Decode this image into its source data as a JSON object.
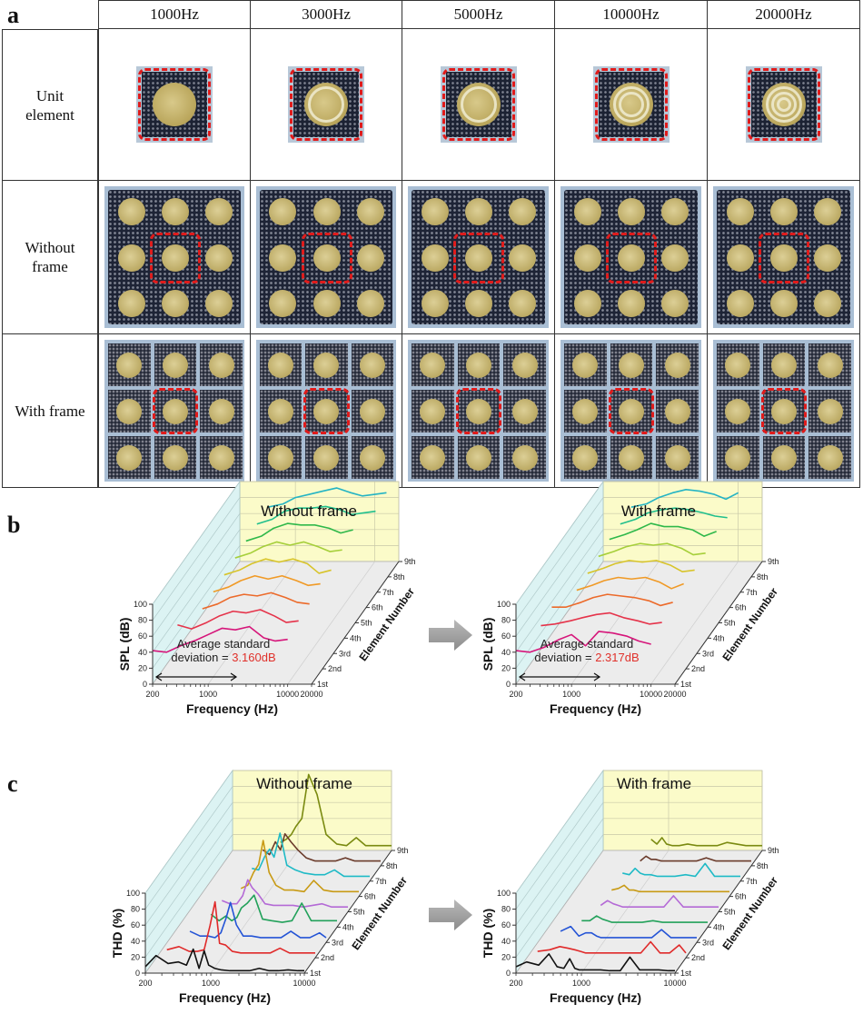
{
  "panels": {
    "a": "a",
    "b": "b",
    "c": "c"
  },
  "table": {
    "columns": [
      "1000Hz",
      "3000Hz",
      "5000Hz",
      "10000Hz",
      "20000Hz"
    ],
    "rows": [
      {
        "label_line1": "Unit",
        "label_line2": "element"
      },
      {
        "label_line1": "Without",
        "label_line2": "frame"
      },
      {
        "label_line1": "With frame",
        "label_line2": ""
      }
    ],
    "highlight_color": "#e01b1b"
  },
  "spl_charts": {
    "left_title": "Without frame",
    "right_title": "With frame",
    "ylabel": "SPL (dB)",
    "xlabel": "Frequency (Hz)",
    "zlabel": "Element Number",
    "yticks": [
      "0",
      "20",
      "40",
      "60",
      "80",
      "100"
    ],
    "xticks": [
      "200",
      "1000",
      "10000",
      "20000"
    ],
    "zticks": [
      "1st",
      "2nd",
      "3rd",
      "4th",
      "5th",
      "6th",
      "7th",
      "8th",
      "9th"
    ],
    "left_annotation_line1": "Average standard",
    "left_annotation_line2": "deviation = ",
    "left_annotation_value": "3.160dB",
    "right_annotation_line1": "Average standard",
    "right_annotation_line2": "deviation = ",
    "right_annotation_value": "2.317dB"
  },
  "thd_charts": {
    "left_title": "Without frame",
    "right_title": "With frame",
    "ylabel": "THD (%)",
    "xlabel": "Frequency (Hz)",
    "zlabel": "Element Number",
    "yticks": [
      "0",
      "20",
      "40",
      "60",
      "80",
      "100"
    ],
    "xticks": [
      "200",
      "1000",
      "10000"
    ],
    "zticks": [
      "1st",
      "2nd",
      "3rd",
      "4th",
      "5th",
      "6th",
      "7th",
      "8th",
      "9th"
    ]
  },
  "chart_data": [
    {
      "type": "line",
      "title": "Without frame",
      "xlabel": "Frequency (Hz)",
      "ylabel": "SPL (dB)",
      "zlabel": "Element Number",
      "xscale": "log",
      "xlim": [
        200,
        20000
      ],
      "ylim": [
        0,
        100
      ],
      "x": [
        200,
        300,
        450,
        700,
        1000,
        1500,
        2200,
        3300,
        5000,
        7000,
        10000,
        14000
      ],
      "series": [
        {
          "name": "1st",
          "color": "#d6157a",
          "values": [
            42,
            40,
            48,
            55,
            62,
            70,
            68,
            72,
            58,
            54,
            56,
            null
          ]
        },
        {
          "name": "2nd",
          "color": "#e5334a",
          "values": [
            null,
            55,
            50,
            58,
            66,
            72,
            70,
            74,
            66,
            58,
            60,
            null
          ]
        },
        {
          "name": "3rd",
          "color": "#ec6a2a",
          "values": [
            null,
            null,
            56,
            62,
            70,
            74,
            72,
            76,
            70,
            64,
            62,
            null
          ]
        },
        {
          "name": "4th",
          "color": "#f09a26",
          "values": [
            null,
            null,
            58,
            64,
            72,
            78,
            74,
            78,
            72,
            66,
            68,
            null
          ]
        },
        {
          "name": "5th",
          "color": "#d8c42a",
          "values": [
            null,
            null,
            60,
            66,
            74,
            80,
            76,
            80,
            74,
            62,
            66,
            null
          ]
        },
        {
          "name": "6th",
          "color": "#a6cf3a",
          "values": [
            null,
            null,
            62,
            68,
            76,
            82,
            78,
            82,
            76,
            70,
            72,
            null
          ]
        },
        {
          "name": "7th",
          "color": "#2fb84a",
          "values": [
            null,
            null,
            64,
            70,
            80,
            86,
            84,
            84,
            80,
            74,
            78,
            null
          ]
        },
        {
          "name": "8th",
          "color": "#1fbf8c",
          "values": [
            null,
            null,
            66,
            72,
            82,
            86,
            86,
            88,
            84,
            78,
            80,
            82
          ]
        },
        {
          "name": "9th",
          "color": "#24b4c4",
          "values": [
            null,
            null,
            68,
            72,
            80,
            84,
            88,
            92,
            86,
            82,
            84,
            86
          ]
        }
      ],
      "annotation": "Average standard deviation = 3.160dB"
    },
    {
      "type": "line",
      "title": "With frame",
      "xlabel": "Frequency (Hz)",
      "ylabel": "SPL (dB)",
      "zlabel": "Element Number",
      "xscale": "log",
      "xlim": [
        200,
        20000
      ],
      "ylim": [
        0,
        100
      ],
      "x": [
        200,
        300,
        450,
        700,
        1000,
        1500,
        2200,
        3300,
        5000,
        7000,
        10000,
        14000
      ],
      "series": [
        {
          "name": "1st",
          "color": "#d6157a",
          "values": [
            42,
            40,
            46,
            56,
            62,
            48,
            66,
            64,
            60,
            54,
            50,
            null
          ]
        },
        {
          "name": "2nd",
          "color": "#e5334a",
          "values": [
            null,
            54,
            56,
            60,
            64,
            68,
            70,
            64,
            60,
            56,
            58,
            null
          ]
        },
        {
          "name": "3rd",
          "color": "#ec6a2a",
          "values": [
            null,
            58,
            58,
            64,
            70,
            74,
            72,
            70,
            66,
            60,
            64,
            null
          ]
        },
        {
          "name": "4th",
          "color": "#f09a26",
          "values": [
            null,
            null,
            60,
            66,
            72,
            76,
            74,
            76,
            70,
            62,
            68,
            null
          ]
        },
        {
          "name": "5th",
          "color": "#d8c42a",
          "values": [
            null,
            null,
            62,
            68,
            74,
            78,
            76,
            78,
            72,
            64,
            66,
            null
          ]
        },
        {
          "name": "6th",
          "color": "#a6cf3a",
          "values": [
            null,
            null,
            64,
            70,
            76,
            80,
            78,
            80,
            74,
            66,
            68,
            null
          ]
        },
        {
          "name": "7th",
          "color": "#2fb84a",
          "values": [
            null,
            null,
            66,
            72,
            78,
            86,
            82,
            82,
            78,
            70,
            76,
            null
          ]
        },
        {
          "name": "8th",
          "color": "#1fbf8c",
          "values": [
            null,
            null,
            66,
            72,
            80,
            84,
            86,
            84,
            80,
            76,
            74,
            null
          ]
        },
        {
          "name": "9th",
          "color": "#24b4c4",
          "values": [
            null,
            null,
            68,
            72,
            80,
            86,
            90,
            88,
            84,
            78,
            86,
            null
          ]
        }
      ],
      "annotation": "Average standard deviation = 2.317dB"
    },
    {
      "type": "line",
      "title": "Without frame",
      "xlabel": "Frequency (Hz)",
      "ylabel": "THD (%)",
      "zlabel": "Element Number",
      "xscale": "log",
      "xlim": [
        200,
        10000
      ],
      "ylim": [
        0,
        100
      ],
      "x": [
        200,
        260,
        350,
        450,
        550,
        650,
        750,
        850,
        950,
        1100,
        1300,
        1600,
        2000,
        2600,
        3300,
        4200,
        5300,
        6700,
        8500,
        10000
      ],
      "series": [
        {
          "name": "1st",
          "color": "#111111",
          "values": [
            8,
            22,
            12,
            14,
            10,
            30,
            6,
            28,
            10,
            6,
            4,
            3,
            3,
            3,
            6,
            3,
            3,
            4,
            3,
            3
          ]
        },
        {
          "name": "2nd",
          "color": "#e02a2a",
          "values": [
            null,
            10,
            14,
            8,
            8,
            10,
            40,
            70,
            18,
            16,
            8,
            6,
            6,
            6,
            6,
            12,
            6,
            6,
            6,
            6
          ]
        },
        {
          "name": "3rd",
          "color": "#2454d6",
          "values": [
            null,
            null,
            14,
            8,
            8,
            6,
            12,
            30,
            50,
            22,
            8,
            8,
            6,
            6,
            6,
            14,
            6,
            6,
            12,
            6
          ]
        },
        {
          "name": "4th",
          "color": "#22a15a",
          "values": [
            null,
            null,
            null,
            16,
            8,
            14,
            8,
            12,
            24,
            30,
            40,
            10,
            8,
            6,
            8,
            30,
            8,
            8,
            8,
            8
          ]
        },
        {
          "name": "5th",
          "color": "#b46ad6",
          "values": [
            null,
            null,
            null,
            14,
            10,
            10,
            20,
            40,
            30,
            22,
            10,
            8,
            8,
            8,
            6,
            8,
            10,
            6,
            6,
            6
          ]
        },
        {
          "name": "6th",
          "color": "#c89a14",
          "values": [
            null,
            null,
            null,
            null,
            10,
            14,
            30,
            40,
            70,
            30,
            14,
            8,
            8,
            6,
            20,
            8,
            6,
            6,
            6,
            6
          ]
        },
        {
          "name": "7th",
          "color": "#1fbac6",
          "values": [
            null,
            null,
            null,
            null,
            16,
            14,
            30,
            40,
            30,
            60,
            20,
            14,
            10,
            8,
            8,
            14,
            6,
            6,
            6,
            6
          ]
        },
        {
          "name": "8th",
          "color": "#6a3a2a",
          "values": [
            null,
            null,
            null,
            null,
            20,
            14,
            30,
            20,
            40,
            30,
            20,
            10,
            6,
            6,
            6,
            10,
            6,
            6,
            6,
            6
          ]
        },
        {
          "name": "9th",
          "color": "#7a8a10",
          "values": [
            null,
            null,
            null,
            null,
            null,
            10,
            14,
            20,
            30,
            40,
            95,
            70,
            20,
            8,
            6,
            16,
            6,
            6,
            6,
            6
          ]
        }
      ]
    },
    {
      "type": "line",
      "title": "With frame",
      "xlabel": "Frequency (Hz)",
      "ylabel": "THD (%)",
      "zlabel": "Element Number",
      "xscale": "log",
      "xlim": [
        200,
        10000
      ],
      "ylim": [
        0,
        100
      ],
      "x": [
        200,
        260,
        350,
        450,
        550,
        650,
        750,
        850,
        950,
        1100,
        1300,
        1600,
        2000,
        2600,
        3300,
        4200,
        5300,
        6700,
        8500,
        10000
      ],
      "series": [
        {
          "name": "1st",
          "color": "#111111",
          "values": [
            8,
            14,
            10,
            24,
            8,
            6,
            18,
            6,
            4,
            4,
            4,
            4,
            3,
            3,
            20,
            4,
            4,
            4,
            3,
            3
          ]
        },
        {
          "name": "2nd",
          "color": "#e02a2a",
          "values": [
            null,
            8,
            10,
            14,
            12,
            10,
            8,
            6,
            6,
            6,
            6,
            6,
            6,
            6,
            6,
            20,
            6,
            6,
            16,
            6
          ]
        },
        {
          "name": "3rd",
          "color": "#2454d6",
          "values": [
            null,
            null,
            14,
            20,
            8,
            12,
            12,
            8,
            6,
            6,
            6,
            6,
            6,
            6,
            6,
            16,
            6,
            6,
            6,
            6
          ]
        },
        {
          "name": "4th",
          "color": "#22a15a",
          "values": [
            null,
            null,
            null,
            8,
            8,
            14,
            10,
            8,
            6,
            6,
            6,
            6,
            6,
            8,
            6,
            6,
            6,
            6,
            6,
            6
          ]
        },
        {
          "name": "5th",
          "color": "#b46ad6",
          "values": [
            null,
            null,
            null,
            null,
            8,
            14,
            10,
            8,
            6,
            6,
            6,
            6,
            6,
            6,
            20,
            6,
            6,
            6,
            6,
            6
          ]
        },
        {
          "name": "6th",
          "color": "#c89a14",
          "values": [
            null,
            null,
            null,
            null,
            8,
            10,
            14,
            8,
            8,
            6,
            6,
            6,
            6,
            6,
            6,
            6,
            6,
            6,
            6,
            6
          ]
        },
        {
          "name": "7th",
          "color": "#1fbac6",
          "values": [
            null,
            null,
            null,
            null,
            10,
            8,
            16,
            10,
            8,
            8,
            6,
            6,
            6,
            8,
            6,
            22,
            6,
            6,
            6,
            6
          ]
        },
        {
          "name": "8th",
          "color": "#6a3a2a",
          "values": [
            null,
            null,
            null,
            null,
            null,
            6,
            12,
            8,
            8,
            6,
            6,
            6,
            6,
            6,
            10,
            6,
            6,
            6,
            6,
            6
          ]
        },
        {
          "name": "9th",
          "color": "#7a8a10",
          "values": [
            null,
            null,
            null,
            null,
            null,
            14,
            8,
            16,
            8,
            6,
            6,
            8,
            6,
            6,
            6,
            10,
            8,
            6,
            6,
            6
          ]
        }
      ]
    }
  ]
}
